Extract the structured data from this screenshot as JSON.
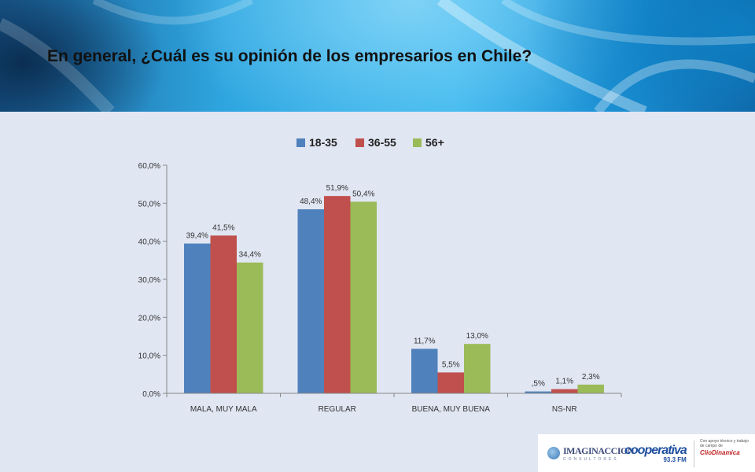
{
  "title": "En general, ¿Cuál es su opinión de los empresarios en Chile?",
  "chart_data": {
    "type": "bar",
    "categories": [
      "MALA, MUY MALA",
      "REGULAR",
      "BUENA, MUY BUENA",
      "NS-NR"
    ],
    "series": [
      {
        "name": "18-35",
        "color": "#4f81bd",
        "values": [
          39.4,
          48.4,
          11.7,
          0.5
        ],
        "labels": [
          "39,4%",
          "48,4%",
          "11,7%",
          ",5%"
        ]
      },
      {
        "name": "36-55",
        "color": "#c0504d",
        "values": [
          41.5,
          51.9,
          5.5,
          1.1
        ],
        "labels": [
          "41,5%",
          "51,9%",
          "5,5%",
          "1,1%"
        ]
      },
      {
        "name": "56+",
        "color": "#9bbb59",
        "values": [
          34.4,
          50.4,
          13.0,
          2.3
        ],
        "labels": [
          "34,4%",
          "50,4%",
          "13,0%",
          "2,3%"
        ]
      }
    ],
    "ylim": [
      0,
      60
    ],
    "yticks": [
      "0,0%",
      "10,0%",
      "20,0%",
      "30,0%",
      "40,0%",
      "50,0%",
      "60,0%"
    ],
    "legend": "top",
    "grid": false
  },
  "logos": {
    "imaginaccion": "IMAGINACCION",
    "imaginaccion_sub": "CONSULTORES",
    "cooperativa": "cooperativa",
    "cooperativa_freq": "93.3 FM",
    "clio_note": "Con apoyo técnico y trabajo de campo de",
    "clio": "ClioDinamica"
  }
}
